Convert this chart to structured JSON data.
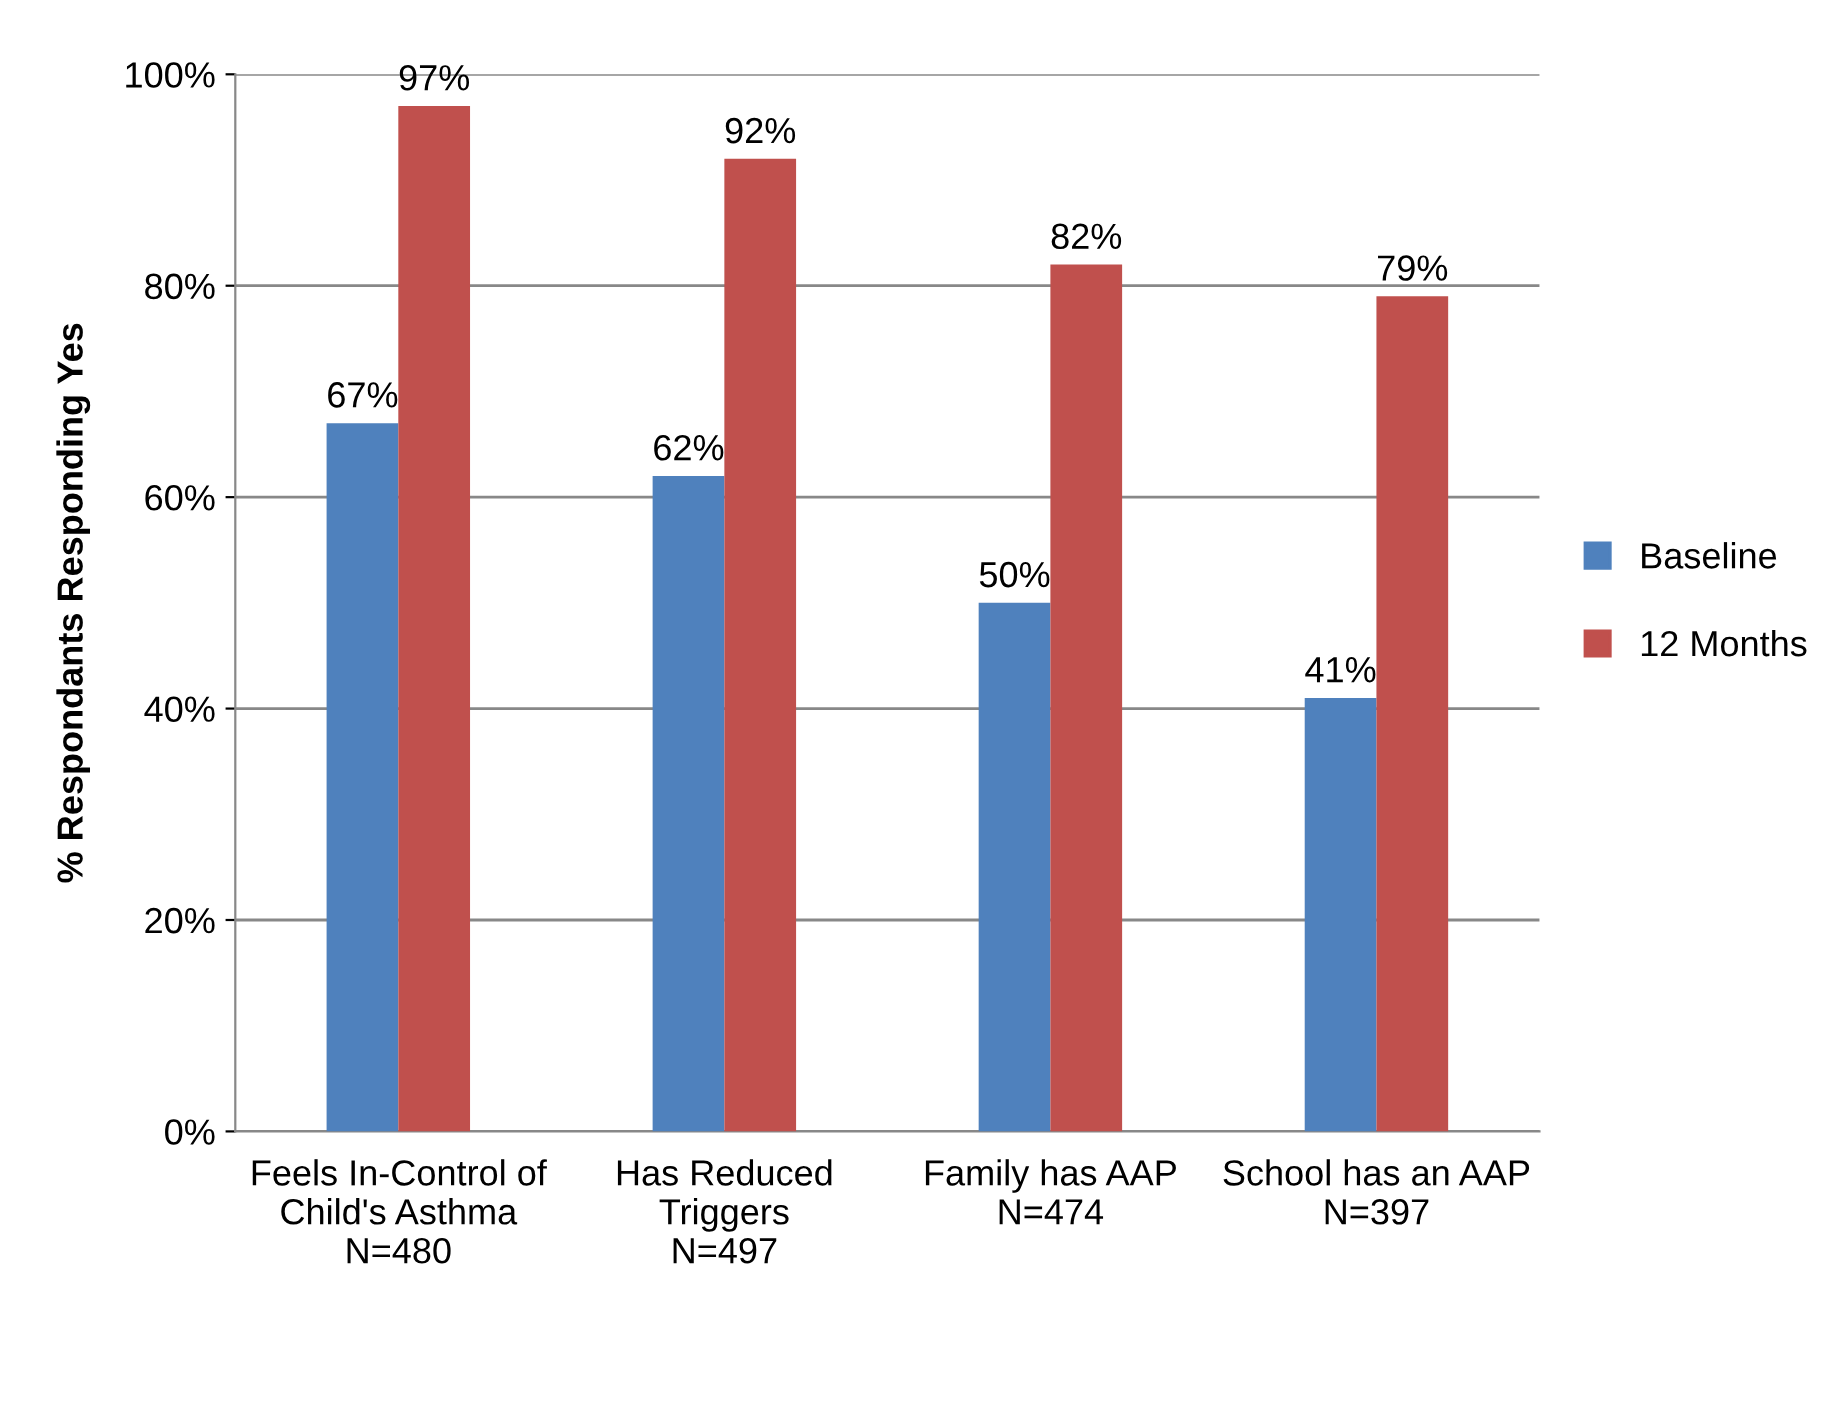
{
  "chart_data": {
    "type": "bar",
    "ylabel": "% Respondants Responding Yes",
    "categories": [
      "Feels In-Control of\nChild's Asthma\nN=480",
      "Has Reduced\nTriggers\nN=497",
      "Family has AAP\nN=474",
      "School has an AAP\nN=397"
    ],
    "series": [
      {
        "name": "Baseline",
        "color": "#4f81bd",
        "values": [
          67,
          62,
          50,
          41
        ],
        "value_labels": [
          "67%",
          "62%",
          "50%",
          "41%"
        ]
      },
      {
        "name": "12 Months",
        "color": "#c0504d",
        "values": [
          97,
          92,
          82,
          79
        ],
        "value_labels": [
          "97%",
          "92%",
          "82%",
          "79%"
        ]
      }
    ],
    "ylim": [
      0,
      100
    ],
    "yticks": [
      {
        "value": 0,
        "label": "0%"
      },
      {
        "value": 20,
        "label": "20%"
      },
      {
        "value": 40,
        "label": "40%"
      },
      {
        "value": 60,
        "label": "60%"
      },
      {
        "value": 80,
        "label": "80%"
      },
      {
        "value": 100,
        "label": "100%"
      }
    ],
    "grid": "y",
    "legend": "right"
  }
}
